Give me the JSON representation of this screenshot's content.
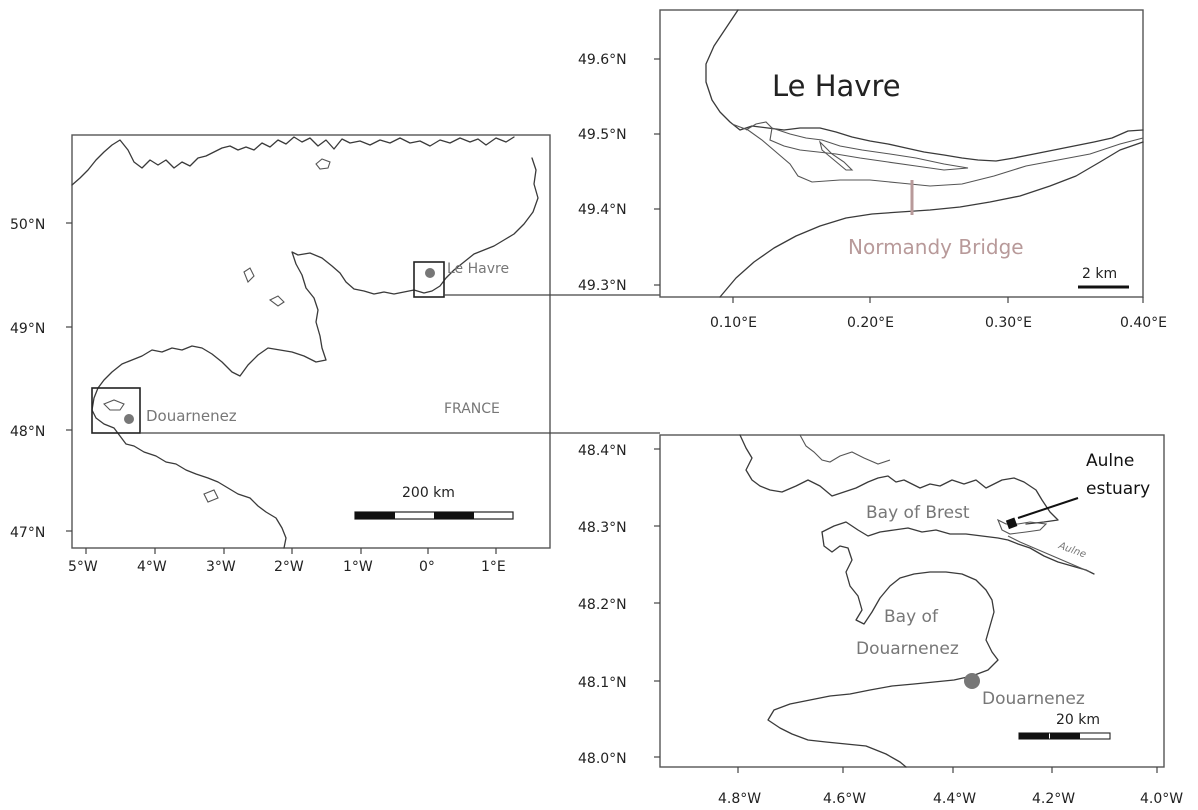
{
  "overview_map": {
    "lat_labels": [
      "50°N",
      "49°N",
      "48°N",
      "47°N"
    ],
    "lon_labels": [
      "5°W",
      "4°W",
      "3°W",
      "2°W",
      "1°W",
      "0°",
      "1°E"
    ],
    "places": {
      "le_havre": "Le Havre",
      "douarnenez": "Douarnenez",
      "france": "FRANCE"
    },
    "scale_bar_label": "200  km"
  },
  "le_havre_inset": {
    "title": "Le Havre",
    "lat_labels": [
      "49.6°N",
      "49.5°N",
      "49.4°N",
      "49.3°N"
    ],
    "lon_labels": [
      "0.10°E",
      "0.20°E",
      "0.30°E",
      "0.40°E"
    ],
    "bridge_label": "Normandy Bridge",
    "scale_bar_label": "2 km"
  },
  "douarnenez_inset": {
    "lat_labels": [
      "48.4°N",
      "48.3°N",
      "48.2°N",
      "48.1°N",
      "48.0°N"
    ],
    "lon_labels": [
      "4.8°W",
      "4.6°W",
      "4.4°W",
      "4.2°W",
      "4.0°W"
    ],
    "places": {
      "bay_of_brest": "Bay of Brest",
      "aulne_estuary_line1": "Aulne",
      "aulne_estuary_line2": "estuary",
      "aulne_river": "Aulne",
      "bay_of_douarnenez_line1": "Bay of",
      "bay_of_douarnenez_line2": "Douarnenez",
      "douarnenez": "Douarnenez"
    },
    "scale_bar_label": "20   km"
  },
  "colors": {
    "coastline": "#3a3a3a",
    "place_label": "#777777",
    "bridge": "#b89a9a",
    "location_dot": "#777777"
  }
}
